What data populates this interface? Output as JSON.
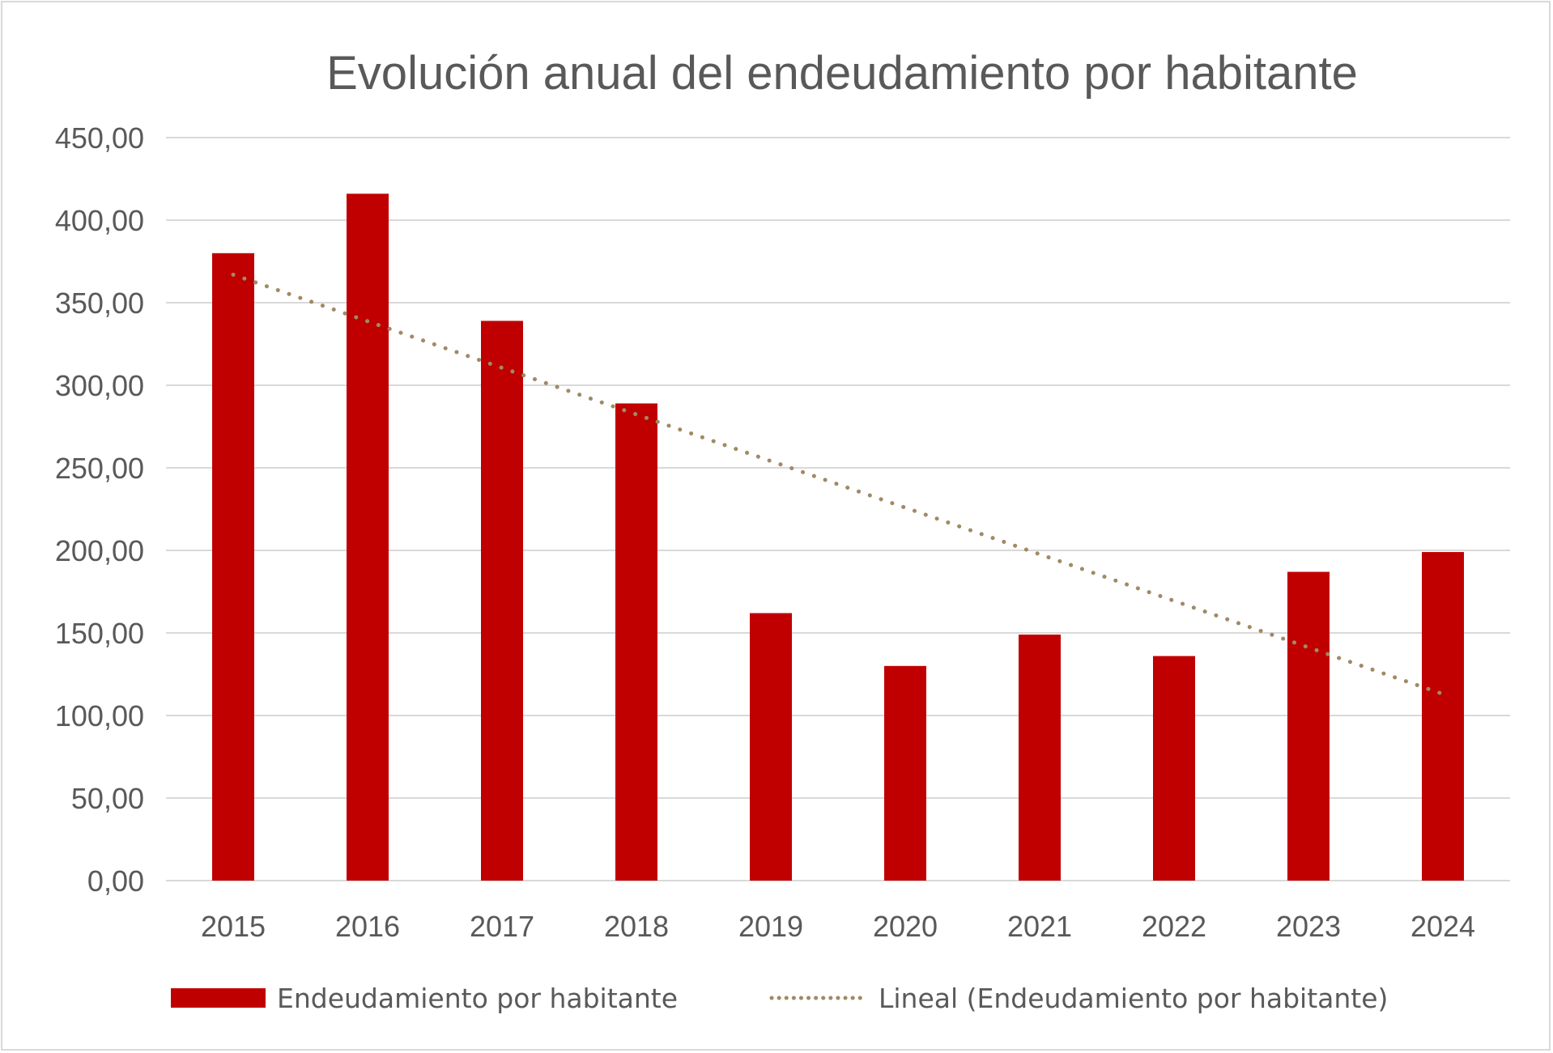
{
  "chart_data": {
    "type": "bar",
    "title": "Evolución anual del endeudamiento por habitante",
    "categories": [
      "2015",
      "2016",
      "2017",
      "2018",
      "2019",
      "2020",
      "2021",
      "2022",
      "2023",
      "2024"
    ],
    "series": [
      {
        "name": "Endeudamiento por habitante",
        "values": [
          380,
          416,
          339,
          289,
          162,
          130,
          149,
          136,
          187,
          199
        ],
        "color": "#c00000"
      }
    ],
    "trendline": {
      "name": "Lineal (Endeudamiento por habitante)",
      "type": "linear",
      "start": 367,
      "end": 113,
      "color": "#a08a65",
      "style": "dotted"
    },
    "ylim": [
      0,
      450
    ],
    "yticks": [
      "0,00",
      "50,00",
      "100,00",
      "150,00",
      "200,00",
      "250,00",
      "300,00",
      "350,00",
      "400,00",
      "450,00"
    ],
    "grid": true,
    "legend": "bottom"
  }
}
